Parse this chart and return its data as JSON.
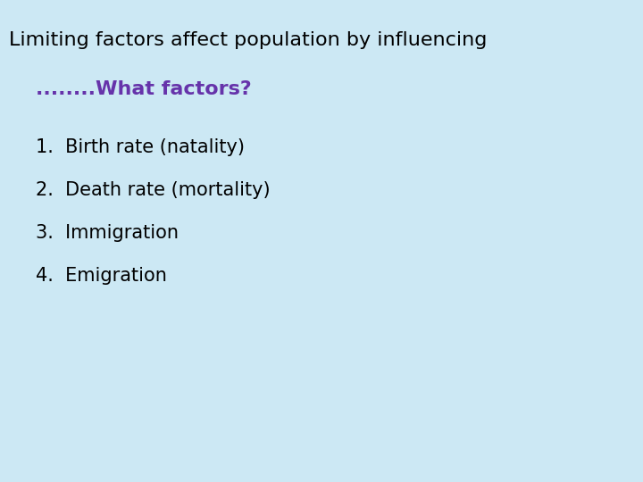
{
  "background_color": "#cce8f4",
  "title": "Limiting factors affect population by influencing",
  "title_fontsize": 16,
  "title_color": "#000000",
  "subtitle": "........What factors?",
  "subtitle_fontsize": 16,
  "subtitle_color": "#6633aa",
  "subtitle_bold": true,
  "list_items": [
    "1.  Birth rate (natality)",
    "2.  Death rate (mortality)",
    "3.  Immigration",
    "4.  Emigration"
  ],
  "list_fontsize": 15,
  "list_color": "#000000"
}
